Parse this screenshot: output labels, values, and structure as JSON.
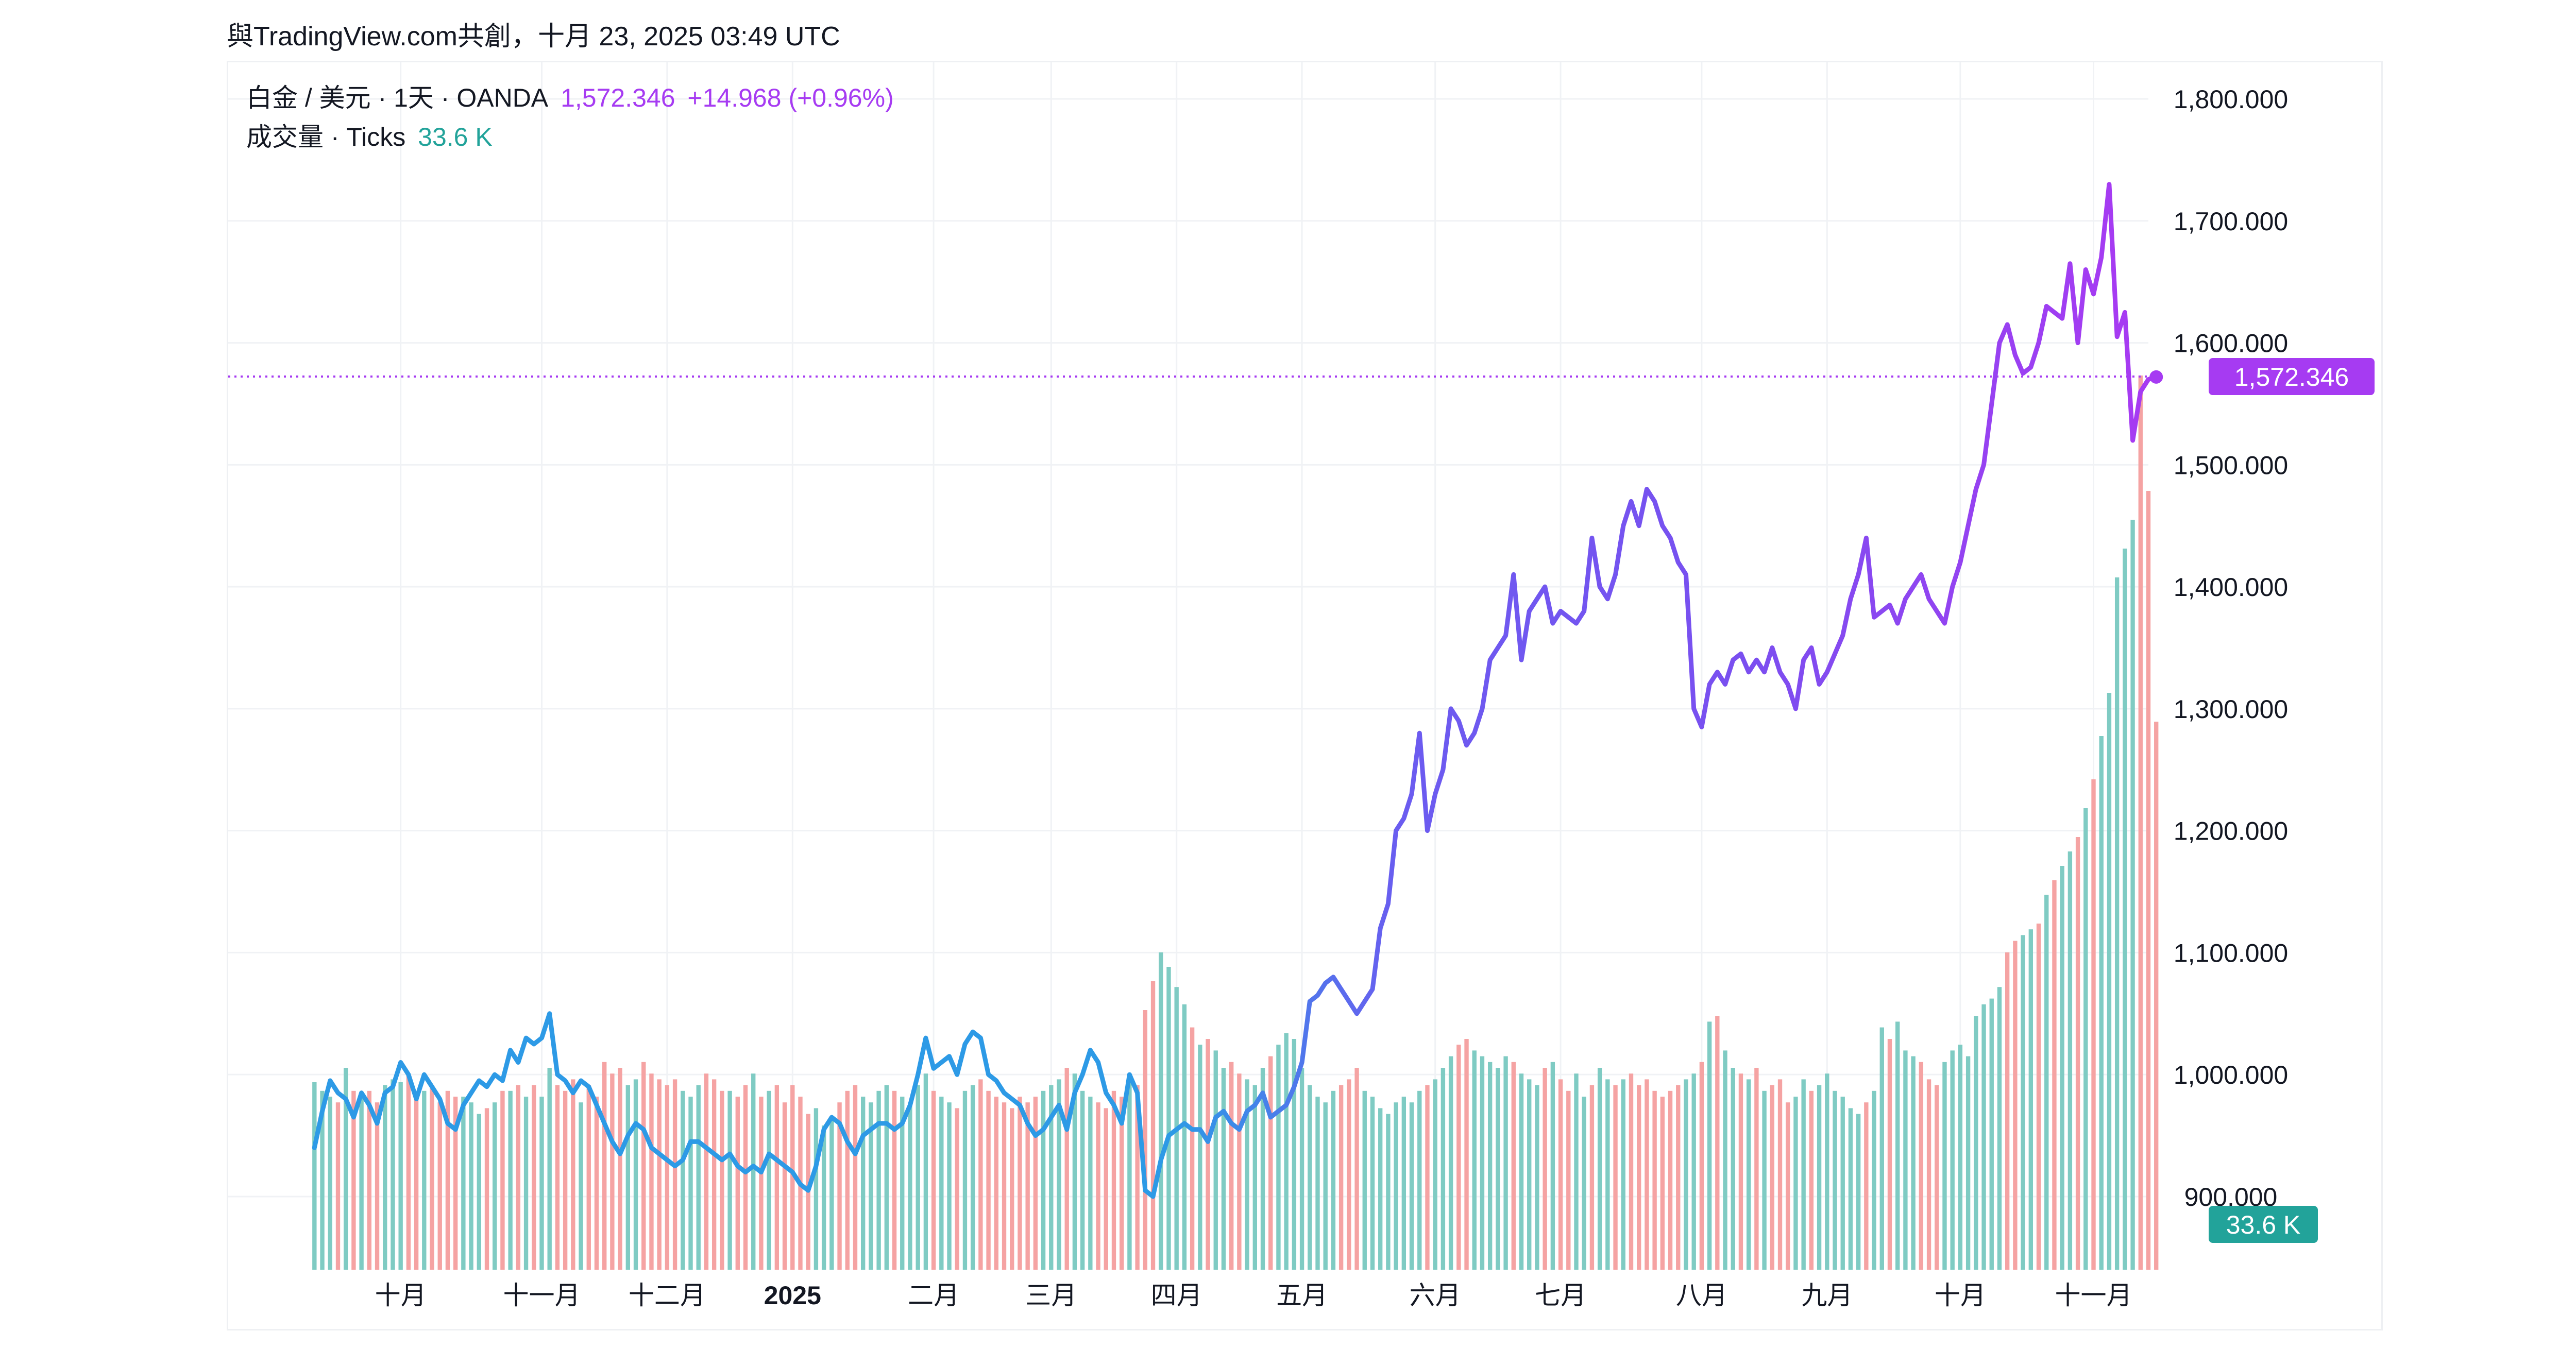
{
  "credit": "與TradingView.com共創，十月 23, 2025 03:49 UTC",
  "legend": {
    "symbol": "白金 / 美元 · 1天 · OANDA",
    "price": "1,572.346",
    "change": "+14.968 (+0.96%)",
    "volume_label": "成交量 · Ticks",
    "volume_value": "33.6 K"
  },
  "colors": {
    "line_start": "#2d9ae6",
    "line_mid": "#7a4ff0",
    "line_end": "#a63bf2",
    "vol_up": "#7fcbc3",
    "vol_down": "#f5a3a3",
    "price_badge": "#a63bf2",
    "volume_badge": "#22a39a"
  },
  "chart_data": {
    "type": "line",
    "title": "白金 / 美元 · 1天 · OANDA",
    "xlabel": "",
    "ylabel": "",
    "ylim": [
      840,
      1830
    ],
    "y_ticks": [
      "1,800.000",
      "1,700.000",
      "1,600.000",
      "1,500.000",
      "1,400.000",
      "1,300.000",
      "1,200.000",
      "1,100.000",
      "1,000.000",
      "900.000"
    ],
    "y_tick_values": [
      1800,
      1700,
      1600,
      1500,
      1400,
      1300,
      1200,
      1100,
      1000,
      900
    ],
    "x_tick_labels": [
      {
        "label": "十月",
        "idx": 11
      },
      {
        "label": "十一月",
        "idx": 29
      },
      {
        "label": "十二月",
        "idx": 45
      },
      {
        "label": "2025",
        "idx": 61,
        "bold": true
      },
      {
        "label": "二月",
        "idx": 79
      },
      {
        "label": "三月",
        "idx": 94
      },
      {
        "label": "四月",
        "idx": 110
      },
      {
        "label": "五月",
        "idx": 126
      },
      {
        "label": "六月",
        "idx": 143
      },
      {
        "label": "七月",
        "idx": 159
      },
      {
        "label": "八月",
        "idx": 177
      },
      {
        "label": "九月",
        "idx": 193
      },
      {
        "label": "十月",
        "idx": 210
      },
      {
        "label": "十一月",
        "idx": 227
      }
    ],
    "x_range": [
      -11,
      234
    ],
    "last_price": 1572.346,
    "last_price_label": "1,572.346",
    "volume_badge_label": "33.6 K",
    "series": [
      {
        "name": "白金 / 美元 Close",
        "values": [
          940,
          970,
          995,
          985,
          980,
          965,
          985,
          975,
          960,
          985,
          990,
          1010,
          1000,
          980,
          1000,
          990,
          980,
          960,
          955,
          975,
          985,
          995,
          990,
          1000,
          995,
          1020,
          1010,
          1030,
          1025,
          1030,
          1050,
          1000,
          995,
          985,
          995,
          990,
          975,
          960,
          945,
          935,
          950,
          960,
          955,
          940,
          935,
          930,
          925,
          930,
          945,
          945,
          940,
          935,
          930,
          935,
          925,
          920,
          925,
          920,
          935,
          930,
          925,
          920,
          910,
          905,
          925,
          955,
          965,
          960,
          945,
          935,
          950,
          955,
          960,
          960,
          955,
          960,
          975,
          1000,
          1030,
          1005,
          1010,
          1015,
          1000,
          1025,
          1035,
          1030,
          1000,
          995,
          985,
          980,
          975,
          960,
          950,
          955,
          965,
          975,
          955,
          985,
          1000,
          1020,
          1010,
          985,
          975,
          960,
          1000,
          985,
          905,
          900,
          930,
          950,
          955,
          960,
          955,
          955,
          945,
          965,
          970,
          960,
          955,
          970,
          975,
          985,
          965,
          970,
          975,
          990,
          1010,
          1060,
          1065,
          1075,
          1080,
          1070,
          1060,
          1050,
          1060,
          1070,
          1120,
          1140,
          1200,
          1210,
          1230,
          1280,
          1200,
          1230,
          1250,
          1300,
          1290,
          1270,
          1280,
          1300,
          1340,
          1350,
          1360,
          1410,
          1340,
          1380,
          1390,
          1400,
          1370,
          1380,
          1375,
          1370,
          1380,
          1440,
          1400,
          1390,
          1410,
          1450,
          1470,
          1450,
          1480,
          1470,
          1450,
          1440,
          1420,
          1410,
          1300,
          1285,
          1320,
          1330,
          1320,
          1340,
          1345,
          1330,
          1340,
          1330,
          1350,
          1330,
          1320,
          1300,
          1340,
          1350,
          1320,
          1330,
          1345,
          1360,
          1390,
          1410,
          1440,
          1375,
          1380,
          1385,
          1370,
          1390,
          1400,
          1410,
          1390,
          1380,
          1370,
          1400,
          1420,
          1450,
          1480,
          1500,
          1550,
          1600,
          1615,
          1590,
          1575,
          1580,
          1600,
          1630,
          1625,
          1620,
          1665,
          1600,
          1660,
          1640,
          1670,
          1730,
          1605,
          1625,
          1520,
          1560,
          1570,
          1572
        ]
      },
      {
        "name": "成交量 Ticks",
        "values": [
          65,
          62,
          60,
          58,
          70,
          62,
          60,
          62,
          58,
          64,
          66,
          65,
          68,
          60,
          62,
          64,
          58,
          62,
          60,
          60,
          58,
          54,
          56,
          58,
          62,
          62,
          64,
          60,
          64,
          60,
          70,
          64,
          62,
          66,
          58,
          64,
          60,
          72,
          68,
          70,
          64,
          66,
          72,
          68,
          66,
          64,
          66,
          62,
          60,
          64,
          68,
          66,
          62,
          62,
          60,
          64,
          68,
          60,
          62,
          64,
          58,
          64,
          60,
          54,
          56,
          50,
          52,
          58,
          62,
          64,
          60,
          58,
          62,
          64,
          62,
          60,
          58,
          64,
          68,
          62,
          60,
          58,
          56,
          62,
          64,
          66,
          62,
          60,
          58,
          56,
          60,
          58,
          60,
          62,
          64,
          66,
          70,
          68,
          62,
          60,
          58,
          56,
          62,
          60,
          66,
          64,
          90,
          100,
          110,
          105,
          98,
          92,
          84,
          78,
          80,
          76,
          70,
          72,
          68,
          66,
          64,
          70,
          74,
          78,
          82,
          80,
          70,
          64,
          60,
          58,
          62,
          64,
          66,
          70,
          62,
          60,
          56,
          54,
          58,
          60,
          58,
          62,
          64,
          66,
          70,
          74,
          78,
          80,
          76,
          74,
          72,
          70,
          74,
          72,
          68,
          66,
          64,
          70,
          72,
          66,
          62,
          68,
          60,
          64,
          70,
          66,
          64,
          66,
          68,
          64,
          66,
          62,
          60,
          62,
          64,
          66,
          68,
          72,
          86,
          88,
          76,
          70,
          68,
          66,
          70,
          62,
          64,
          66,
          58,
          60,
          66,
          62,
          64,
          68,
          62,
          60,
          56,
          54,
          58,
          62,
          84,
          80,
          86,
          76,
          74,
          72,
          66,
          64,
          72,
          76,
          78,
          74,
          88,
          92,
          94,
          98,
          110,
          114,
          116,
          118,
          120,
          130,
          135,
          140,
          145,
          150,
          160,
          170,
          185,
          200,
          240,
          250,
          260,
          310,
          270,
          190
        ]
      },
      {
        "name": "成交量 Direction",
        "values": [
          1,
          1,
          1,
          0,
          1,
          0,
          1,
          0,
          0,
          1,
          1,
          1,
          0,
          0,
          1,
          0,
          0,
          0,
          0,
          1,
          1,
          1,
          0,
          1,
          0,
          1,
          0,
          1,
          0,
          1,
          1,
          0,
          0,
          0,
          1,
          0,
          0,
          0,
          0,
          0,
          1,
          1,
          0,
          0,
          0,
          0,
          0,
          1,
          1,
          1,
          0,
          0,
          0,
          1,
          0,
          0,
          1,
          0,
          1,
          0,
          0,
          0,
          0,
          0,
          1,
          1,
          1,
          0,
          0,
          0,
          1,
          1,
          1,
          1,
          0,
          1,
          1,
          1,
          1,
          0,
          1,
          1,
          0,
          1,
          1,
          0,
          0,
          0,
          0,
          0,
          0,
          0,
          0,
          1,
          1,
          1,
          0,
          1,
          1,
          1,
          0,
          0,
          0,
          0,
          1,
          0,
          0,
          0,
          1,
          1,
          1,
          1,
          0,
          1,
          0,
          1,
          1,
          0,
          0,
          1,
          1,
          1,
          0,
          1,
          1,
          1,
          1,
          1,
          1,
          1,
          1,
          0,
          0,
          0,
          1,
          1,
          1,
          1,
          1,
          1,
          1,
          1,
          0,
          1,
          1,
          1,
          0,
          0,
          1,
          1,
          1,
          1,
          1,
          0,
          1,
          1,
          1,
          0,
          1,
          0,
          0,
          1,
          1,
          0,
          1,
          1,
          0,
          1,
          0,
          0,
          0,
          0,
          0,
          0,
          0,
          1,
          1,
          0,
          1,
          0,
          1,
          1,
          0,
          1,
          0,
          1,
          0,
          0,
          0,
          1,
          1,
          0,
          1,
          1,
          1,
          1,
          1,
          1,
          0,
          1,
          1,
          0,
          1,
          1,
          1,
          0,
          0,
          0,
          1,
          1,
          1,
          1,
          1,
          1,
          1,
          1,
          0,
          0,
          1,
          1,
          0,
          1,
          0,
          1,
          1,
          0,
          1,
          0,
          1,
          1,
          1,
          1,
          1
        ]
      }
    ]
  }
}
